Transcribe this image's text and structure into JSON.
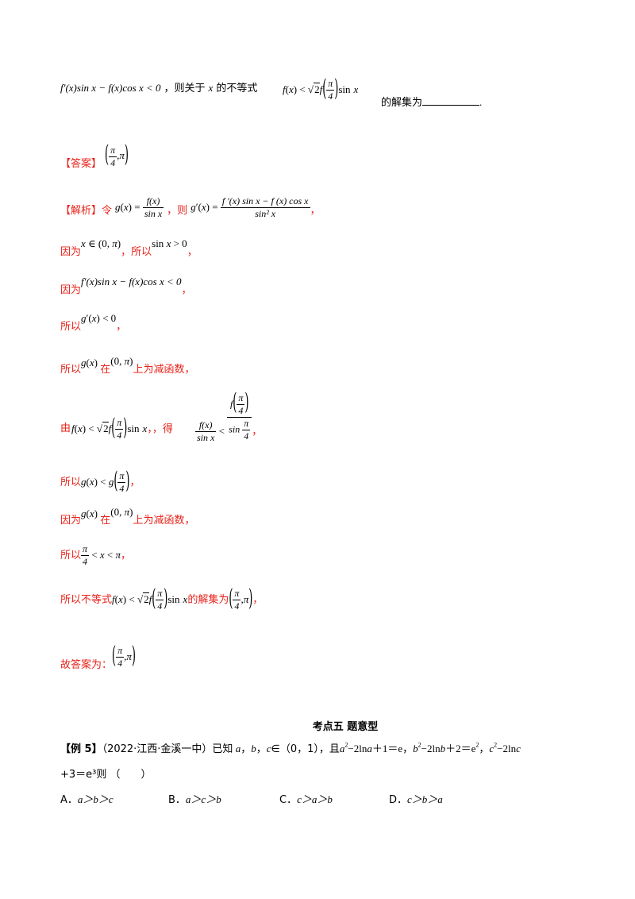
{
  "top": {
    "premise": "f′(x)sin x − f(x)cos x < 0",
    "then_text": "，则关于",
    "var_x": "x",
    "ineq_text": "的不等式",
    "after_text": "的解集为",
    "end_dot": "."
  },
  "answer": {
    "label": "【答案】"
  },
  "analysis": {
    "label": "【解析】",
    "ling": "令",
    "ze": "，则",
    "comma": "，",
    "yinwei": "因为",
    "suoyi": "所以",
    "zai": "在",
    "decreasing": "上为减函数",
    "you": "由",
    "de": "，得",
    "ineq_solution": "的解集为",
    "suoyi_budengshi": "所以不等式",
    "final": "故答案为："
  },
  "section": {
    "title": "考点五  题意型"
  },
  "example": {
    "label": "【例 5】",
    "source": "（2022·江西·金溪一中）已知",
    "line1_rest": "，且",
    "line2": "+3＝e³则 （　　）",
    "options": [
      {
        "letter": "A．",
        "text": "a＞b＞c"
      },
      {
        "letter": "B．",
        "text": "a＞c＞b"
      },
      {
        "letter": "C．",
        "text": "c＞a＞b"
      },
      {
        "letter": "D．",
        "text": "c＞b＞a"
      }
    ]
  }
}
